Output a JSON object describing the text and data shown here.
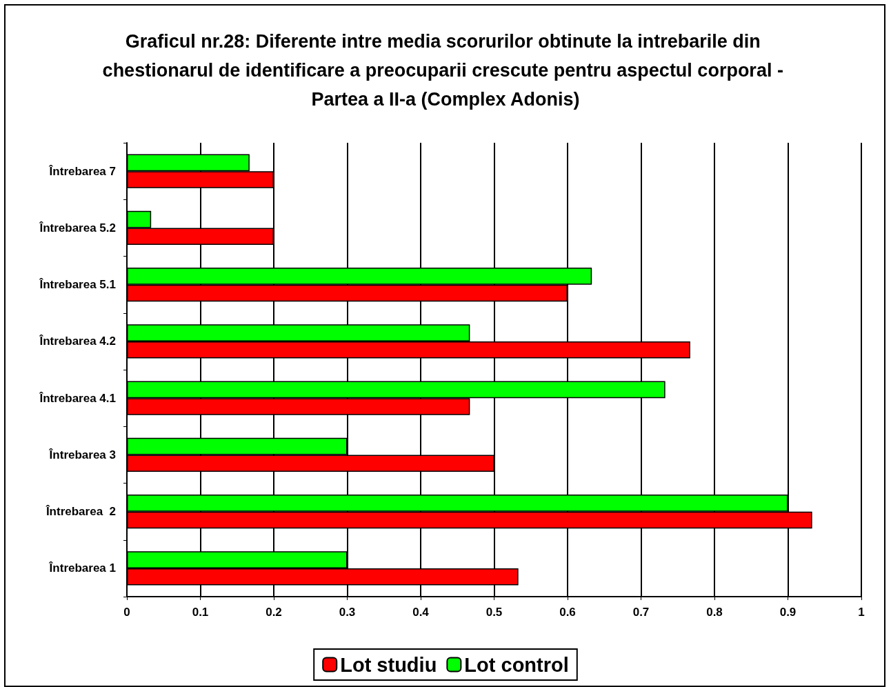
{
  "chart_data": {
    "type": "bar",
    "orientation": "horizontal",
    "title": "Graficul nr.28: Diferente intre media scorurilor obtinute la intrebarile din chestionarul de identificare a preocuparii crescute pentru aspectul corporal - Partea a II-a (Complex Adonis)",
    "categories": [
      "Întrebarea 7",
      "Întrebarea 5.2",
      "Întrebarea 5.1",
      "Întrebarea 4.2",
      "Întrebarea 4.1",
      "Întrebarea 3",
      "Întrebarea  2",
      "Întrebarea 1"
    ],
    "series": [
      {
        "name": "Lot studiu",
        "color": "#ff0000",
        "values": [
          0.2,
          0.2,
          0.6,
          0.767,
          0.467,
          0.5,
          0.933,
          0.533
        ]
      },
      {
        "name": "Lot control",
        "color": "#00ff00",
        "values": [
          0.167,
          0.033,
          0.633,
          0.467,
          0.733,
          0.3,
          0.9,
          0.3
        ]
      }
    ],
    "xlim": [
      0,
      1
    ],
    "xticks": [
      0,
      0.1,
      0.2,
      0.3,
      0.4,
      0.5,
      0.6,
      0.7,
      0.8,
      0.9,
      1
    ],
    "grid": "x",
    "legend": "bottom"
  }
}
